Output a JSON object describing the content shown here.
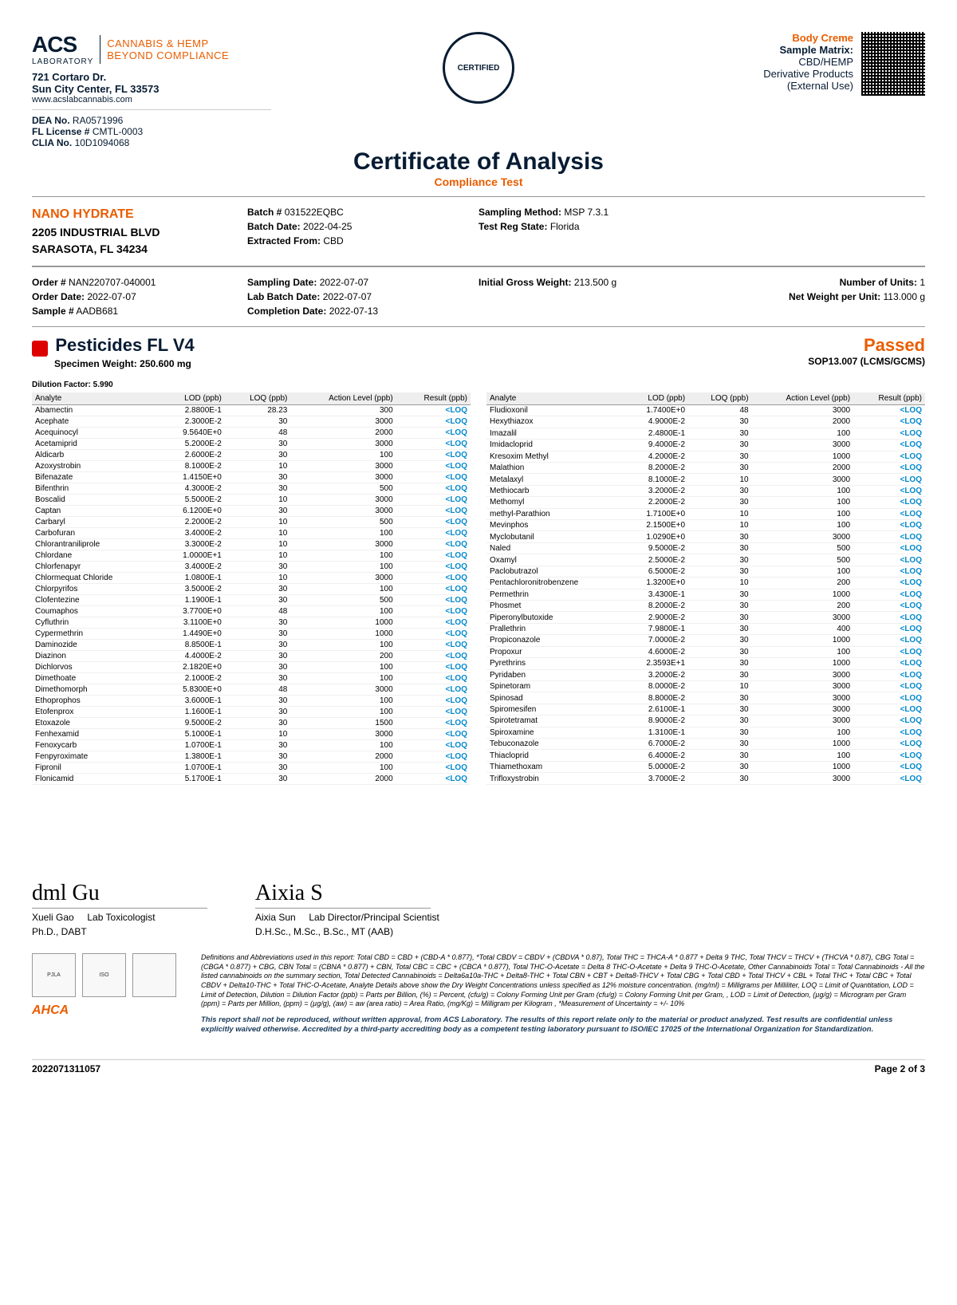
{
  "lab": {
    "logo_main": "ACS",
    "logo_sub": "LABORATORY",
    "logo_tag1": "CANNABIS & HEMP",
    "logo_tag2": "BEYOND COMPLIANCE",
    "addr1": "721 Cortaro Dr.",
    "addr2": "Sun City Center, FL 33573",
    "website": "www.acslabcannabis.com",
    "dea_label": "DEA No.",
    "dea_val": "RA0571996",
    "fl_label": "FL License #",
    "fl_val": "CMTL-0003",
    "clia_label": "CLIA No.",
    "clia_val": "10D1094068"
  },
  "cert_badge": "CERTIFIED",
  "product": {
    "title": "Body Creme",
    "matrix_label": "Sample Matrix:",
    "matrix1": "CBD/HEMP",
    "matrix2": "Derivative Products",
    "matrix3": "(External Use)"
  },
  "coa_title": "Certificate of Analysis",
  "coa_sub": "Compliance Test",
  "client": {
    "name": "NANO HYDRATE",
    "addr1": "2205 INDUSTRIAL BLVD",
    "addr2": "SARASOTA, FL 34234"
  },
  "batch": {
    "batch_no_label": "Batch #",
    "batch_no": "031522EQBC",
    "batch_date_label": "Batch Date:",
    "batch_date": "2022-04-25",
    "extracted_label": "Extracted From:",
    "extracted": "CBD",
    "sampling_method_label": "Sampling Method:",
    "sampling_method": "MSP 7.3.1",
    "reg_state_label": "Test Reg State:",
    "reg_state": "Florida"
  },
  "order": {
    "order_no_label": "Order #",
    "order_no": "NAN220707-040001",
    "order_date_label": "Order Date:",
    "order_date": "2022-07-07",
    "sample_no_label": "Sample #",
    "sample_no": "AADB681",
    "sampling_date_label": "Sampling Date:",
    "sampling_date": "2022-07-07",
    "lab_batch_label": "Lab Batch Date:",
    "lab_batch": "2022-07-07",
    "completion_label": "Completion Date:",
    "completion": "2022-07-13",
    "gross_label": "Initial Gross Weight:",
    "gross": "213.500 g",
    "units_label": "Number of Units:",
    "units": "1",
    "net_label": "Net Weight per Unit:",
    "net": "113.000 g"
  },
  "test": {
    "title": "Pesticides FL V4",
    "specimen_label": "Specimen Weight:",
    "specimen": "250.600 mg",
    "passed": "Passed",
    "sop": "SOP13.007 (LCMS/GCMS)",
    "dilution_label": "Dilution Factor:",
    "dilution": "5.990"
  },
  "columns": [
    "Analyte",
    "LOD (ppb)",
    "LOQ (ppb)",
    "Action Level (ppb)",
    "Result (ppb)"
  ],
  "left_rows": [
    [
      "Abamectin",
      "2.8800E-1",
      "28.23",
      "300",
      "<LOQ"
    ],
    [
      "Acephate",
      "2.3000E-2",
      "30",
      "3000",
      "<LOQ"
    ],
    [
      "Acequinocyl",
      "9.5640E+0",
      "48",
      "2000",
      "<LOQ"
    ],
    [
      "Acetamiprid",
      "5.2000E-2",
      "30",
      "3000",
      "<LOQ"
    ],
    [
      "Aldicarb",
      "2.6000E-2",
      "30",
      "100",
      "<LOQ"
    ],
    [
      "Azoxystrobin",
      "8.1000E-2",
      "10",
      "3000",
      "<LOQ"
    ],
    [
      "Bifenazate",
      "1.4150E+0",
      "30",
      "3000",
      "<LOQ"
    ],
    [
      "Bifenthrin",
      "4.3000E-2",
      "30",
      "500",
      "<LOQ"
    ],
    [
      "Boscalid",
      "5.5000E-2",
      "10",
      "3000",
      "<LOQ"
    ],
    [
      "Captan",
      "6.1200E+0",
      "30",
      "3000",
      "<LOQ"
    ],
    [
      "Carbaryl",
      "2.2000E-2",
      "10",
      "500",
      "<LOQ"
    ],
    [
      "Carbofuran",
      "3.4000E-2",
      "10",
      "100",
      "<LOQ"
    ],
    [
      "Chlorantraniliprole",
      "3.3000E-2",
      "10",
      "3000",
      "<LOQ"
    ],
    [
      "Chlordane",
      "1.0000E+1",
      "10",
      "100",
      "<LOQ"
    ],
    [
      "Chlorfenapyr",
      "3.4000E-2",
      "30",
      "100",
      "<LOQ"
    ],
    [
      "Chlormequat Chloride",
      "1.0800E-1",
      "10",
      "3000",
      "<LOQ"
    ],
    [
      "Chlorpyrifos",
      "3.5000E-2",
      "30",
      "100",
      "<LOQ"
    ],
    [
      "Clofentezine",
      "1.1900E-1",
      "30",
      "500",
      "<LOQ"
    ],
    [
      "Coumaphos",
      "3.7700E+0",
      "48",
      "100",
      "<LOQ"
    ],
    [
      "Cyfluthrin",
      "3.1100E+0",
      "30",
      "1000",
      "<LOQ"
    ],
    [
      "Cypermethrin",
      "1.4490E+0",
      "30",
      "1000",
      "<LOQ"
    ],
    [
      "Daminozide",
      "8.8500E-1",
      "30",
      "100",
      "<LOQ"
    ],
    [
      "Diazinon",
      "4.4000E-2",
      "30",
      "200",
      "<LOQ"
    ],
    [
      "Dichlorvos",
      "2.1820E+0",
      "30",
      "100",
      "<LOQ"
    ],
    [
      "Dimethoate",
      "2.1000E-2",
      "30",
      "100",
      "<LOQ"
    ],
    [
      "Dimethomorph",
      "5.8300E+0",
      "48",
      "3000",
      "<LOQ"
    ],
    [
      "Ethoprophos",
      "3.6000E-1",
      "30",
      "100",
      "<LOQ"
    ],
    [
      "Etofenprox",
      "1.1600E-1",
      "30",
      "100",
      "<LOQ"
    ],
    [
      "Etoxazole",
      "9.5000E-2",
      "30",
      "1500",
      "<LOQ"
    ],
    [
      "Fenhexamid",
      "5.1000E-1",
      "10",
      "3000",
      "<LOQ"
    ],
    [
      "Fenoxycarb",
      "1.0700E-1",
      "30",
      "100",
      "<LOQ"
    ],
    [
      "Fenpyroximate",
      "1.3800E-1",
      "30",
      "2000",
      "<LOQ"
    ],
    [
      "Fipronil",
      "1.0700E-1",
      "30",
      "100",
      "<LOQ"
    ],
    [
      "Flonicamid",
      "5.1700E-1",
      "30",
      "2000",
      "<LOQ"
    ]
  ],
  "right_rows": [
    [
      "Fludioxonil",
      "1.7400E+0",
      "48",
      "3000",
      "<LOQ"
    ],
    [
      "Hexythiazox",
      "4.9000E-2",
      "30",
      "2000",
      "<LOQ"
    ],
    [
      "Imazalil",
      "2.4800E-1",
      "30",
      "100",
      "<LOQ"
    ],
    [
      "Imidacloprid",
      "9.4000E-2",
      "30",
      "3000",
      "<LOQ"
    ],
    [
      "Kresoxim Methyl",
      "4.2000E-2",
      "30",
      "1000",
      "<LOQ"
    ],
    [
      "Malathion",
      "8.2000E-2",
      "30",
      "2000",
      "<LOQ"
    ],
    [
      "Metalaxyl",
      "8.1000E-2",
      "10",
      "3000",
      "<LOQ"
    ],
    [
      "Methiocarb",
      "3.2000E-2",
      "30",
      "100",
      "<LOQ"
    ],
    [
      "Methomyl",
      "2.2000E-2",
      "30",
      "100",
      "<LOQ"
    ],
    [
      "methyl-Parathion",
      "1.7100E+0",
      "10",
      "100",
      "<LOQ"
    ],
    [
      "Mevinphos",
      "2.1500E+0",
      "10",
      "100",
      "<LOQ"
    ],
    [
      "Myclobutanil",
      "1.0290E+0",
      "30",
      "3000",
      "<LOQ"
    ],
    [
      "Naled",
      "9.5000E-2",
      "30",
      "500",
      "<LOQ"
    ],
    [
      "Oxamyl",
      "2.5000E-2",
      "30",
      "500",
      "<LOQ"
    ],
    [
      "Paclobutrazol",
      "6.5000E-2",
      "30",
      "100",
      "<LOQ"
    ],
    [
      "Pentachloronitrobenzene",
      "1.3200E+0",
      "10",
      "200",
      "<LOQ"
    ],
    [
      "Permethrin",
      "3.4300E-1",
      "30",
      "1000",
      "<LOQ"
    ],
    [
      "Phosmet",
      "8.2000E-2",
      "30",
      "200",
      "<LOQ"
    ],
    [
      "Piperonylbutoxide",
      "2.9000E-2",
      "30",
      "3000",
      "<LOQ"
    ],
    [
      "Prallethrin",
      "7.9800E-1",
      "30",
      "400",
      "<LOQ"
    ],
    [
      "Propiconazole",
      "7.0000E-2",
      "30",
      "1000",
      "<LOQ"
    ],
    [
      "Propoxur",
      "4.6000E-2",
      "30",
      "100",
      "<LOQ"
    ],
    [
      "Pyrethrins",
      "2.3593E+1",
      "30",
      "1000",
      "<LOQ"
    ],
    [
      "Pyridaben",
      "3.2000E-2",
      "30",
      "3000",
      "<LOQ"
    ],
    [
      "Spinetoram",
      "8.0000E-2",
      "10",
      "3000",
      "<LOQ"
    ],
    [
      "Spinosad",
      "8.8000E-2",
      "30",
      "3000",
      "<LOQ"
    ],
    [
      "Spiromesifen",
      "2.6100E-1",
      "30",
      "3000",
      "<LOQ"
    ],
    [
      "Spirotetramat",
      "8.9000E-2",
      "30",
      "3000",
      "<LOQ"
    ],
    [
      "Spiroxamine",
      "1.3100E-1",
      "30",
      "100",
      "<LOQ"
    ],
    [
      "Tebuconazole",
      "6.7000E-2",
      "30",
      "1000",
      "<LOQ"
    ],
    [
      "Thiacloprid",
      "6.4000E-2",
      "30",
      "100",
      "<LOQ"
    ],
    [
      "Thiamethoxam",
      "5.0000E-2",
      "30",
      "1000",
      "<LOQ"
    ],
    [
      "Trifloxystrobin",
      "3.7000E-2",
      "30",
      "3000",
      "<LOQ"
    ]
  ],
  "sign": {
    "sig1": "dml Gu",
    "name1": "Xueli Gao",
    "role1": "Lab Toxicologist",
    "cred1": "Ph.D., DABT",
    "sig2": "Aixia S",
    "name2": "Aixia Sun",
    "role2": "Lab Director/Principal Scientist",
    "cred2": "D.H.Sc., M.Sc., B.Sc., MT (AAB)"
  },
  "accred": {
    "pjla": "PJLA",
    "iso": "ISO",
    "ahca": "AHCA"
  },
  "definitions": "Definitions and Abbreviations used in this report: Total CBD = CBD + (CBD-A * 0.877), *Total CBDV = CBDV + (CBDVA * 0.87), Total THC = THCA-A * 0.877 + Delta 9 THC, Total THCV = THCV + (THCVA * 0.87), CBG Total = (CBGA * 0.877) + CBG, CBN Total = (CBNA * 0.877) + CBN, Total CBC = CBC + (CBCA * 0.877), Total THC-O-Acetate = Delta 8 THC-O-Acetate + Delta 9 THC-O-Acetate, Other Cannabinoids Total = Total Cannabinoids - All the listed cannabinoids on the summary section, Total Detected Cannabinoids = Delta6a10a-THC + Delta8-THC + Total CBN + CBT + Delta8-THCV + Total CBG + Total CBD + Total THCV + CBL + Total THC + Total CBC + Total CBDV + Delta10-THC + Total THC-O-Acetate, Analyte Details above show the Dry Weight Concentrations unless specified as 12% moisture concentration. (mg/ml) = Milligrams per Milliliter, LOQ = Limit of Quantitation, LOD = Limit of Detection, Dilution = Dilution Factor (ppb) = Parts per Billion, (%) = Percent, (cfu/g) = Colony Forming Unit per Gram (cfu/g) = Colony Forming Unit per Gram, , LOD = Limit of Detection, (µg/g) = Microgram per Gram (ppm) = Parts per Million, (ppm) = (µg/g), (aw) = aw (area ratio) = Area Ratio, (mg/Kg) = Milligram per Kilogram , *Measurement of Uncertainty = +/- 10%",
  "disclaimer": "This report shall not be reproduced, without written approval, from ACS Laboratory. The results of this report relate only to the material or product analyzed. Test results are confidential unless explicitly waived otherwise. Accredited by a third-party accrediting body as a competent testing laboratory pursuant to ISO/IEC 17025 of the International Organization for Standardization.",
  "footer": {
    "doc_id": "2022071311057",
    "page": "Page 2 of 3"
  },
  "colors": {
    "accent": "#e95d00",
    "dark": "#071c33",
    "link": "#0088cc"
  }
}
